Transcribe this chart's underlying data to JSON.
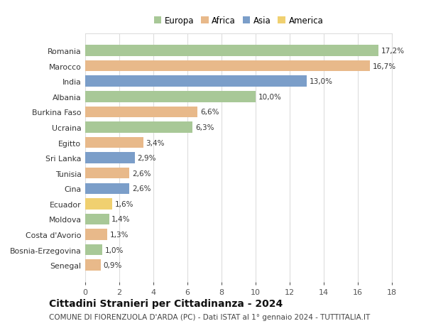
{
  "countries": [
    "Romania",
    "Marocco",
    "India",
    "Albania",
    "Burkina Faso",
    "Ucraina",
    "Egitto",
    "Sri Lanka",
    "Tunisia",
    "Cina",
    "Ecuador",
    "Moldova",
    "Costa d'Avorio",
    "Bosnia-Erzegovina",
    "Senegal"
  ],
  "values": [
    17.2,
    16.7,
    13.0,
    10.0,
    6.6,
    6.3,
    3.4,
    2.9,
    2.6,
    2.6,
    1.6,
    1.4,
    1.3,
    1.0,
    0.9
  ],
  "labels": [
    "17,2%",
    "16,7%",
    "13,0%",
    "10,0%",
    "6,6%",
    "6,3%",
    "3,4%",
    "2,9%",
    "2,6%",
    "2,6%",
    "1,6%",
    "1,4%",
    "1,3%",
    "1,0%",
    "0,9%"
  ],
  "continents": [
    "Europa",
    "Africa",
    "Asia",
    "Europa",
    "Africa",
    "Europa",
    "Africa",
    "Asia",
    "Africa",
    "Asia",
    "America",
    "Europa",
    "Africa",
    "Europa",
    "Africa"
  ],
  "continent_colors": {
    "Europa": "#a8c897",
    "Africa": "#e8b98a",
    "Asia": "#7b9ec9",
    "America": "#f0d070"
  },
  "legend_order": [
    "Europa",
    "Africa",
    "Asia",
    "America"
  ],
  "xlim": [
    0,
    18
  ],
  "xticks": [
    0,
    2,
    4,
    6,
    8,
    10,
    12,
    14,
    16,
    18
  ],
  "title": "Cittadini Stranieri per Cittadinanza - 2024",
  "subtitle": "COMUNE DI FIORENZUOLA D'ARDA (PC) - Dati ISTAT al 1° gennaio 2024 - TUTTITALIA.IT",
  "title_fontsize": 10,
  "subtitle_fontsize": 7.5,
  "background_color": "#ffffff",
  "grid_color": "#dddddd",
  "bar_height": 0.72
}
